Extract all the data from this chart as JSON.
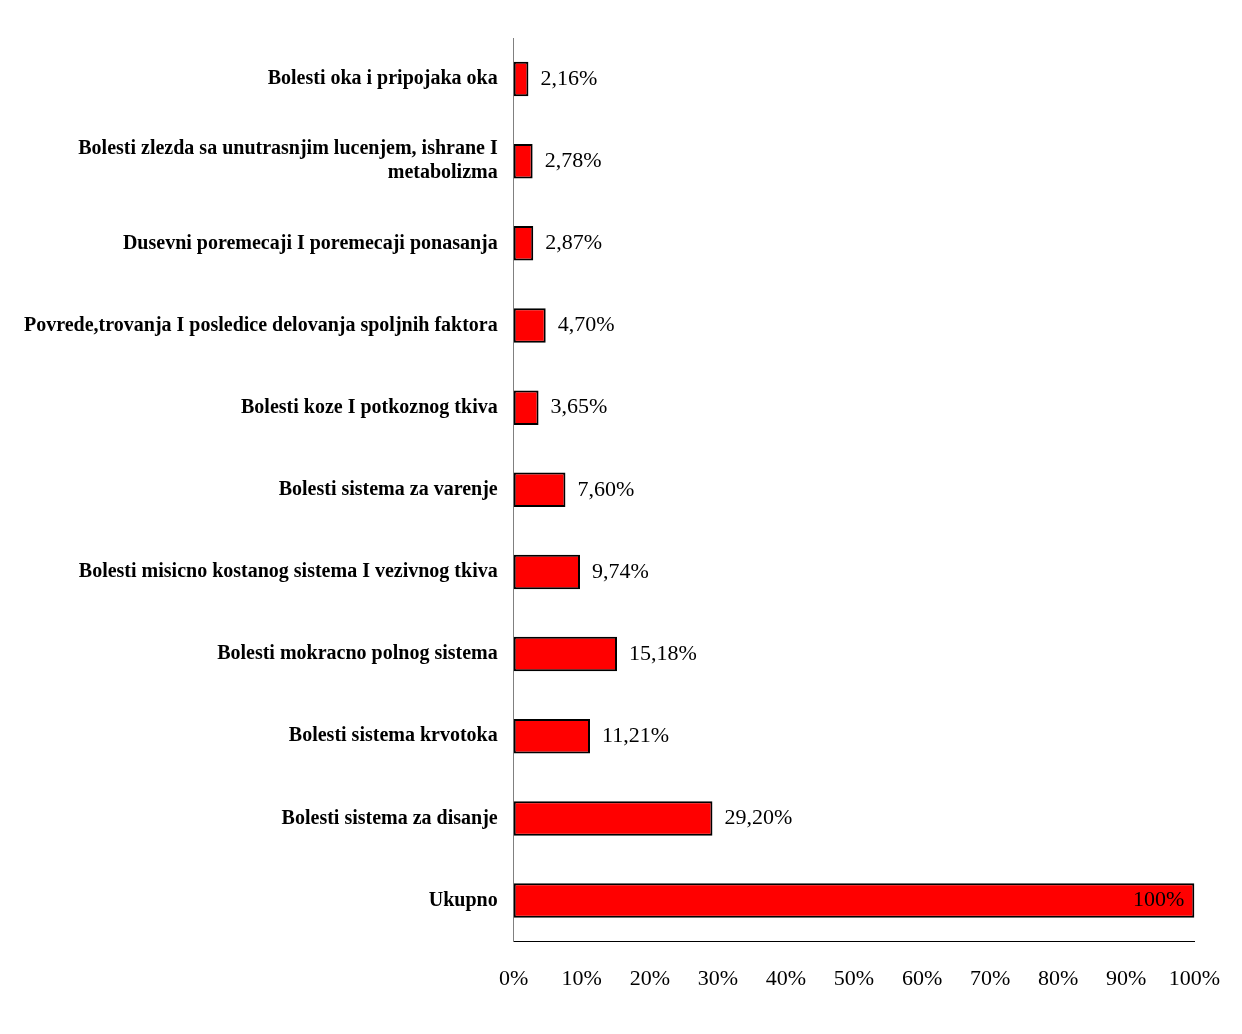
{
  "chart_data": {
    "type": "bar",
    "orientation": "horizontal",
    "categories": [
      "Bolesti oka i pripojaka oka",
      "Bolesti zlezda sa unutrasnjim lucenjem, ishrane I metabolizma",
      "Dusevni poremecaji I poremecaji ponasanja",
      "Povrede,trovanja I posledice delovanja spoljnih faktora",
      "Bolesti koze I potkoznog tkiva",
      "Bolesti sistema za varenje",
      "Bolesti misicno kostanog sistema I vezivnog tkiva",
      "Bolesti mokracno polnog sistema",
      "Bolesti sistema krvotoka",
      "Bolesti sistema za disanje",
      "Ukupno"
    ],
    "values": [
      2.16,
      2.78,
      2.87,
      4.7,
      3.65,
      7.6,
      9.74,
      15.18,
      11.21,
      29.2,
      100
    ],
    "value_labels": [
      "2,16%",
      "2,78%",
      "2,87%",
      "4,70%",
      "3,65%",
      "7,60%",
      "9,74%",
      "15,18%",
      "11,21%",
      "29,20%",
      "100%"
    ],
    "color": "#ff0000",
    "xlim": [
      0,
      100
    ],
    "xticks": [
      {
        "value": 0,
        "label": "0%"
      },
      {
        "value": 10,
        "label": "10%"
      },
      {
        "value": 20,
        "label": "20%"
      },
      {
        "value": 30,
        "label": "30%"
      },
      {
        "value": 40,
        "label": "40%"
      },
      {
        "value": 50,
        "label": "50%"
      },
      {
        "value": 60,
        "label": "60%"
      },
      {
        "value": 70,
        "label": "70%"
      },
      {
        "value": 80,
        "label": "80%"
      },
      {
        "value": 90,
        "label": "90%"
      },
      {
        "value": 100,
        "label": "100%"
      }
    ],
    "grid": false,
    "legend": false
  }
}
